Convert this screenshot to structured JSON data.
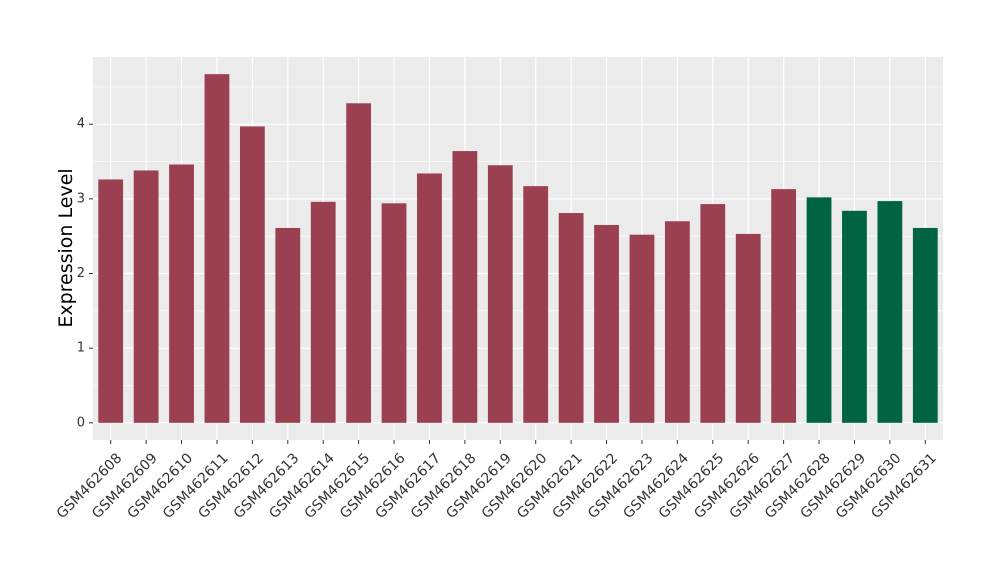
{
  "chart_data": {
    "type": "bar",
    "y_label": "Expression Level",
    "categories": [
      "GSM462608",
      "GSM462609",
      "GSM462610",
      "GSM462611",
      "GSM462612",
      "GSM462613",
      "GSM462614",
      "GSM462615",
      "GSM462616",
      "GSM462617",
      "GSM462618",
      "GSM462619",
      "GSM462620",
      "GSM462621",
      "GSM462622",
      "GSM462623",
      "GSM462624",
      "GSM462625",
      "GSM462626",
      "GSM462627",
      "GSM462628",
      "GSM462629",
      "GSM462630",
      "GSM462631"
    ],
    "values": [
      3.26,
      3.38,
      3.46,
      4.67,
      3.97,
      2.61,
      2.96,
      4.28,
      2.94,
      3.34,
      3.64,
      3.45,
      3.17,
      2.81,
      2.65,
      2.52,
      2.7,
      2.93,
      2.53,
      3.13,
      3.02,
      2.84,
      2.97,
      2.61
    ],
    "colors": [
      "#9a4050",
      "#9a4050",
      "#9a4050",
      "#9a4050",
      "#9a4050",
      "#9a4050",
      "#9a4050",
      "#9a4050",
      "#9a4050",
      "#9a4050",
      "#9a4050",
      "#9a4050",
      "#9a4050",
      "#9a4050",
      "#9a4050",
      "#9a4050",
      "#9a4050",
      "#9a4050",
      "#9a4050",
      "#9a4050",
      "#006443",
      "#006443",
      "#006443",
      "#006443"
    ],
    "ylim": [
      -0.23,
      4.9
    ],
    "yticks": [
      0,
      1,
      2,
      3,
      4
    ],
    "grid": true
  }
}
